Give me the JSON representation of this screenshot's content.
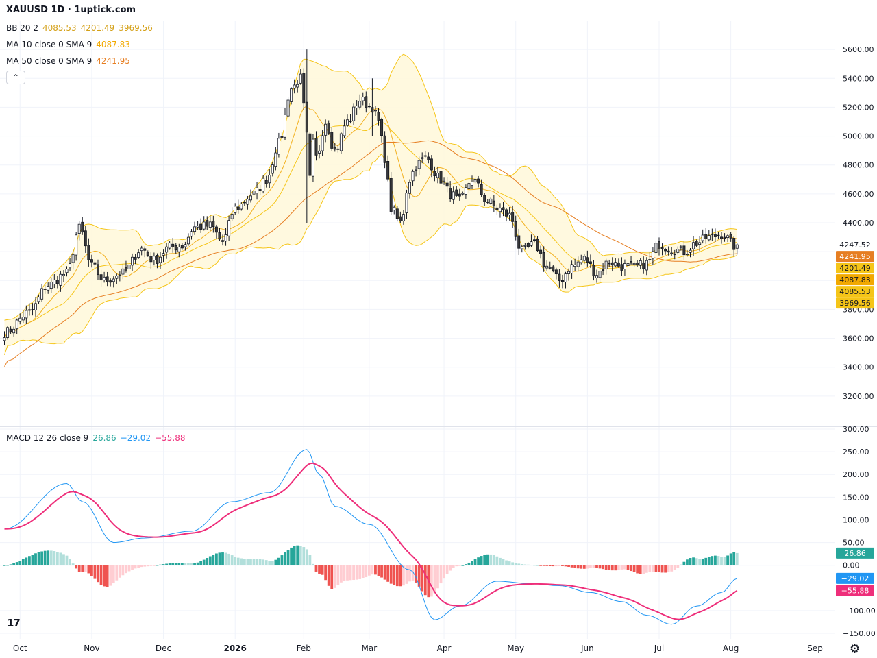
{
  "header": {
    "title": "XAUUSD 1D · 1uptick.com",
    "bb": {
      "label": "BB 20 2",
      "values": [
        "4085.53",
        "4201.49",
        "3969.56"
      ]
    },
    "ma10": {
      "label": "MA 10 close 0 SMA 9",
      "value": "4087.83"
    },
    "ma50": {
      "label": "MA 50 close 0 SMA 9",
      "value": "4241.95"
    },
    "macd": {
      "label": "MACD 12 26 close 9",
      "values": [
        "26.86",
        "−29.02",
        "−55.88"
      ]
    },
    "collapse_glyph": "⌃"
  },
  "colors": {
    "bb": "#f5c518",
    "bb_fill": "#fff8dc",
    "ma10": "#f2b01e",
    "ma50": "#e67e22",
    "candle_up": "#ffffff",
    "candle_down": "#3a3a3a",
    "candle_border": "#131722",
    "macd": "#2196f3",
    "signal": "#ee2e7a",
    "hist_pos_strong": "#26a69a",
    "hist_pos_weak": "#b2dfdb",
    "hist_neg_strong": "#ef5350",
    "hist_neg_weak": "#ffcdd2",
    "grid": "#f0f3fa"
  },
  "price_axis": {
    "ticks": [
      "5600.00",
      "5400.00",
      "5200.00",
      "5000.00",
      "4800.00",
      "4600.00",
      "4400.00",
      "3800.00",
      "3600.00",
      "3400.00",
      "3200.00"
    ],
    "ylim": [
      3000,
      5800
    ],
    "badges": [
      {
        "text": "4247.52",
        "bg": "#ffffff",
        "fg": "#131722",
        "value": 4247.52
      },
      {
        "text": "4241.95",
        "bg": "#e67e22",
        "fg": "#ffffff",
        "value": 4241.95
      },
      {
        "text": "4201.49",
        "bg": "#f5c518",
        "fg": "#131722",
        "value": 4201.49
      },
      {
        "text": "4087.83",
        "bg": "#f2a900",
        "fg": "#131722",
        "value": 4087.83
      },
      {
        "text": "4085.53",
        "bg": "#f5c518",
        "fg": "#131722",
        "value": 4085.53
      },
      {
        "text": "3969.56",
        "bg": "#f5c518",
        "fg": "#131722",
        "value": 3969.56
      }
    ]
  },
  "macd_axis": {
    "ticks": [
      "300.00",
      "250.00",
      "200.00",
      "150.00",
      "100.00",
      "50.00",
      "0.00",
      "−100.00",
      "−150.00"
    ],
    "tick_values": [
      300,
      250,
      200,
      150,
      100,
      50,
      0,
      -100,
      -150
    ],
    "ylim": [
      -162,
      303
    ],
    "badges": [
      {
        "text": "26.86",
        "bg": "#26a69a",
        "fg": "#ffffff",
        "value": 26.86
      },
      {
        "text": "−29.02",
        "bg": "#2196f3",
        "fg": "#ffffff",
        "value": -29.02
      },
      {
        "text": "−55.88",
        "bg": "#ee2e7a",
        "fg": "#ffffff",
        "value": -55.88
      }
    ]
  },
  "time_axis": {
    "labels": [
      "Oct",
      "Nov",
      "Dec",
      "2026",
      "Feb",
      "Mar",
      "Apr",
      "May",
      "Jun",
      "Jul",
      "Aug",
      "Sep"
    ],
    "bold": [
      false,
      false,
      false,
      true,
      false,
      false,
      false,
      false,
      false,
      false,
      false,
      false
    ],
    "month_index": [
      5,
      28,
      51,
      74,
      96,
      117,
      141,
      164,
      187,
      210,
      233,
      260
    ]
  },
  "chart_data": {
    "type": "candlestick",
    "symbol": "XAUUSD",
    "interval": "1D",
    "key_days": [
      0,
      8,
      14,
      20,
      24,
      28,
      32,
      38,
      44,
      48,
      53,
      57,
      61,
      66,
      70,
      74,
      80,
      84,
      88,
      92,
      95,
      97,
      98,
      99,
      100,
      103,
      106,
      110,
      114,
      118,
      120,
      122,
      124,
      127,
      130,
      132,
      135,
      140,
      143,
      146,
      150,
      155,
      158,
      162,
      166,
      170,
      174,
      178,
      182,
      186,
      190,
      194,
      198,
      202,
      206,
      210,
      214,
      218,
      222,
      226,
      230,
      235
    ],
    "key_closes": [
      3640,
      3780,
      3970,
      4050,
      4360,
      4100,
      4000,
      4050,
      4220,
      4140,
      4230,
      4240,
      4370,
      4380,
      4270,
      4500,
      4600,
      4700,
      4950,
      5330,
      5400,
      5000,
      4700,
      4950,
      4850,
      5100,
      4900,
      5100,
      5250,
      5200,
      5100,
      4850,
      4500,
      4400,
      4700,
      4800,
      4850,
      4700,
      4600,
      4550,
      4700,
      4550,
      4500,
      4450,
      4200,
      4250,
      4100,
      4000,
      4100,
      4150,
      4050,
      4130,
      4100,
      4090,
      4120,
      4250,
      4220,
      4200,
      4260,
      4300,
      4320,
      4230
    ],
    "wick_overrides": {
      "97": [
        5600,
        4400
      ],
      "118": [
        5400,
        5000
      ],
      "140": [
        4400,
        4250
      ]
    },
    "bb": {
      "basis": 4085.53,
      "upper": 4201.49,
      "lower": 3969.56
    },
    "ma10_last": 4087.83,
    "ma50_last": 4241.95,
    "last_close": 4247.52,
    "macd": {
      "key_days": [
        0,
        20,
        25,
        35,
        45,
        60,
        73,
        85,
        97,
        101,
        106,
        117,
        130,
        138,
        146,
        158,
        168,
        178,
        188,
        198,
        206,
        214,
        222,
        230,
        235
      ],
      "key_values": [
        80,
        180,
        140,
        50,
        60,
        75,
        140,
        160,
        255,
        200,
        130,
        90,
        -10,
        -120,
        -90,
        -35,
        -40,
        -45,
        -60,
        -80,
        -110,
        -130,
        -90,
        -60,
        -29.02
      ]
    },
    "signal_last": -55.88,
    "hist_last": 26.86
  }
}
